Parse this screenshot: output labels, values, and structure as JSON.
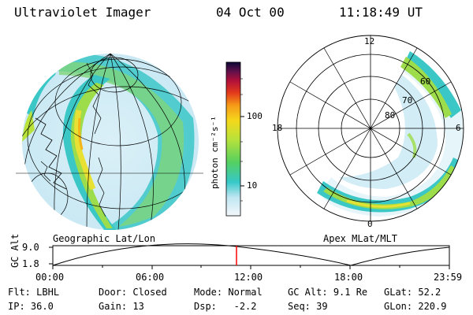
{
  "header": {
    "title": "Ultraviolet Imager",
    "date": "04 Oct 00",
    "time": "11:18:49 UT"
  },
  "colorbar": {
    "unit_label": "photon cm⁻²s⁻¹",
    "tick_labels": [
      "100",
      "10"
    ]
  },
  "left_panel": {
    "caption": "Geographic Lat/Lon"
  },
  "right_panel": {
    "caption": "Apex MLat/MLT",
    "clock_labels": [
      "12",
      "18",
      "6",
      "0"
    ],
    "lat_labels": [
      "60",
      "70",
      "80"
    ]
  },
  "timeline": {
    "axis_label": "GC Alt",
    "y_ticks": [
      "9.0",
      "1.8"
    ],
    "x_ticks": [
      "00:00",
      "06:00",
      "12:00",
      "18:00",
      "23:59"
    ]
  },
  "status": {
    "row1": [
      {
        "key": "Flt:",
        "val": "LBHL"
      },
      {
        "key": "Door:",
        "val": "Closed"
      },
      {
        "key": "Mode:",
        "val": "Normal"
      },
      {
        "key": "GC Alt:",
        "val": "9.1 Re"
      },
      {
        "key": "GLat:",
        "val": "52.2"
      }
    ],
    "row2": [
      {
        "key": "IP:",
        "val": "36.0"
      },
      {
        "key": "Gain:",
        "val": "13"
      },
      {
        "key": "Dsp:",
        "val": "-2.2"
      },
      {
        "key": "Seq:",
        "val": "39"
      },
      {
        "key": "GLon:",
        "val": "220.9"
      }
    ]
  }
}
